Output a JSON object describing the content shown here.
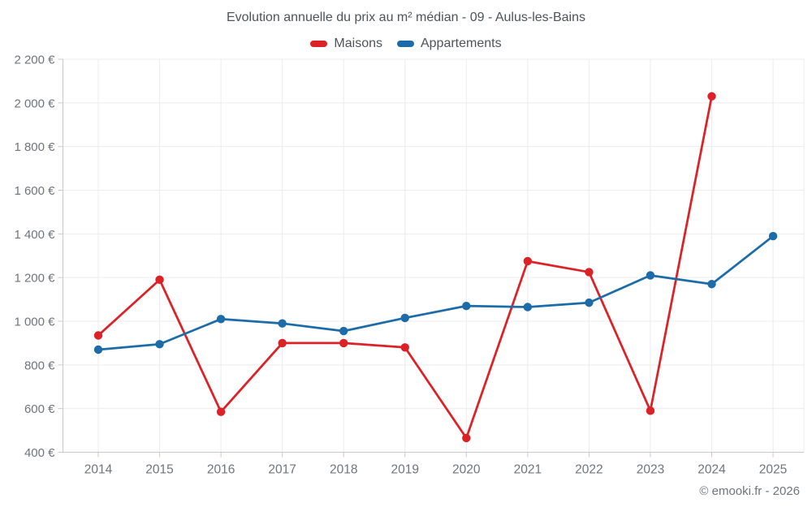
{
  "page": {
    "title": "Evolution annuelle du prix au m² médian - 09 - Aulus-les-Bains"
  },
  "footer": {
    "copyright": "© emooki.fr - 2026"
  },
  "chart_data": {
    "type": "line",
    "title": "Evolution annuelle du prix au m² médian - 09 - Aulus-les-Bains",
    "categories": [
      "2014",
      "2015",
      "2016",
      "2017",
      "2018",
      "2019",
      "2020",
      "2021",
      "2022",
      "2023",
      "2024",
      "2025"
    ],
    "xlabel": "",
    "ylabel": "",
    "ylim": [
      400,
      2200
    ],
    "y_tick_step": 200,
    "y_ticks": [
      400,
      600,
      800,
      1000,
      1200,
      1400,
      1600,
      1800,
      2000,
      2200
    ],
    "y_tick_labels": [
      "400 €",
      "600 €",
      "800 €",
      "1 000 €",
      "1 200 €",
      "1 400 €",
      "1 600 €",
      "1 800 €",
      "2 000 €",
      "2 200 €"
    ],
    "grid": true,
    "legend_position": "top",
    "series": [
      {
        "name": "Maisons",
        "color": "#dc2127",
        "values": [
          935,
          1190,
          585,
          900,
          900,
          880,
          465,
          1275,
          1225,
          590,
          2030,
          null
        ]
      },
      {
        "name": "Appartements",
        "color": "#1b6ca8",
        "values": [
          870,
          895,
          1010,
          990,
          955,
          1015,
          1070,
          1065,
          1085,
          1210,
          1170,
          1390
        ]
      }
    ]
  }
}
